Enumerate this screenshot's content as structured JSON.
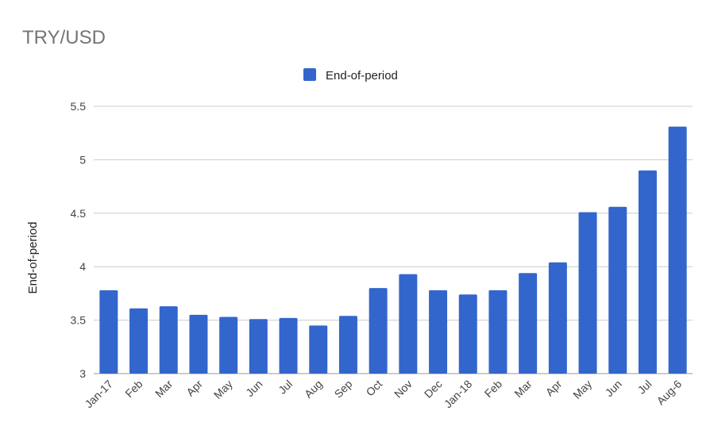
{
  "chart_data": {
    "type": "bar",
    "title": "TRY/USD",
    "ylabel": "End-of-period",
    "xlabel": "",
    "legend": {
      "position": "top",
      "entries": [
        "End-of-period"
      ]
    },
    "ylim": [
      3,
      5.5
    ],
    "yticks": [
      "3",
      "3.5",
      "4",
      "4.5",
      "5",
      "5.5"
    ],
    "grid": true,
    "color": "#3366cc",
    "categories": [
      "Jan-17",
      "Feb",
      "Mar",
      "Apr",
      "May",
      "Jun",
      "Jul",
      "Aug",
      "Sep",
      "Oct",
      "Nov",
      "Dec",
      "Jan-18",
      "Feb",
      "Mar",
      "Apr",
      "May",
      "Jun",
      "Jul",
      "Aug-6"
    ],
    "series": [
      {
        "name": "End-of-period",
        "values": [
          3.78,
          3.61,
          3.63,
          3.55,
          3.53,
          3.51,
          3.52,
          3.45,
          3.54,
          3.8,
          3.93,
          3.78,
          3.74,
          3.78,
          3.94,
          4.04,
          4.51,
          4.56,
          4.9,
          5.31
        ]
      }
    ]
  }
}
